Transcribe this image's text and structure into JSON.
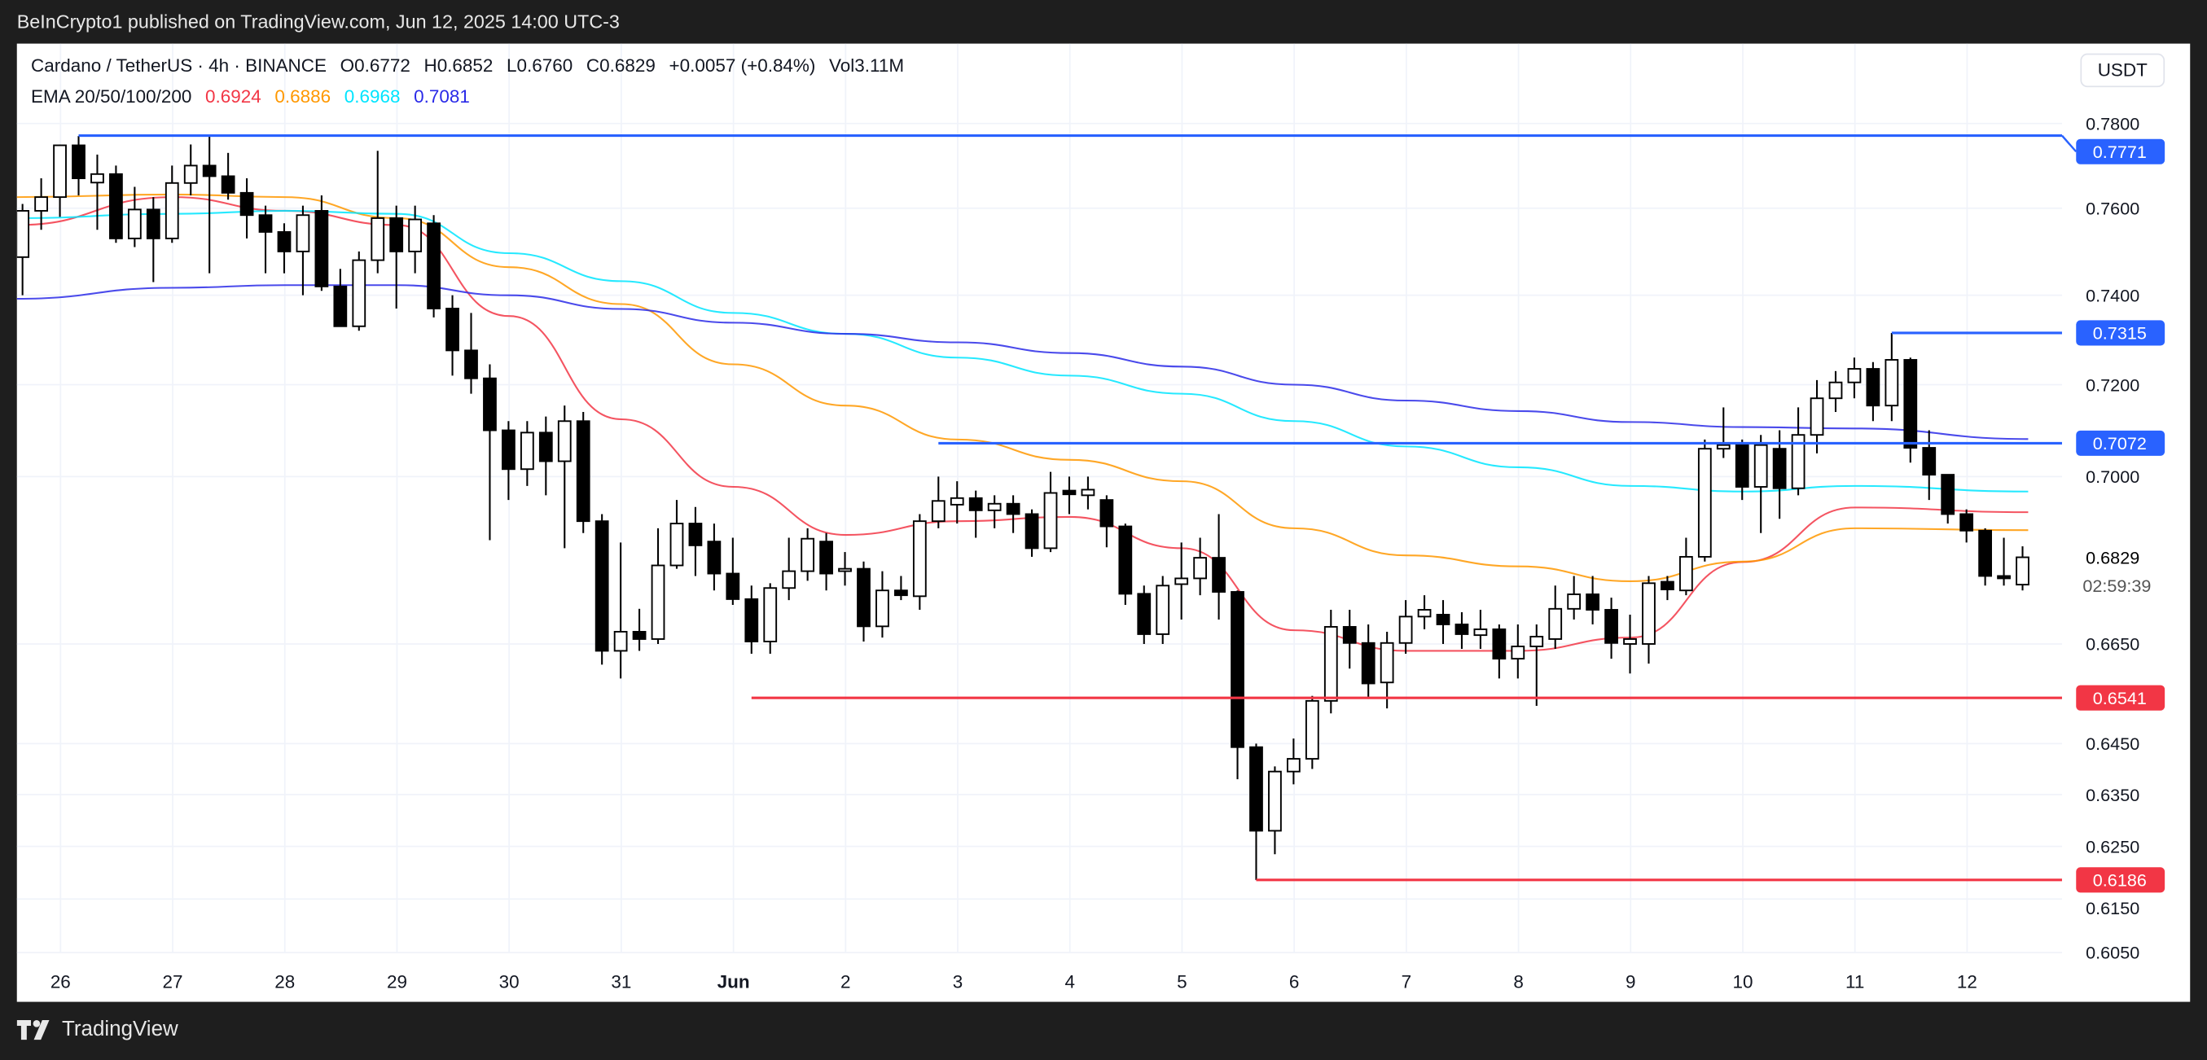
{
  "topbar": {
    "publisher": "BeInCrypto1 published on TradingView.com, Jun 12, 2025 14:00 UTC-3"
  },
  "legend": {
    "symbol": "Cardano / TetherUS · 4h · BINANCE",
    "open": "O0.6772",
    "high": "H0.6852",
    "low": "L0.6760",
    "close": "C0.6829",
    "change": "+0.0057 (+0.84%)",
    "volume": "Vol3.11M",
    "ema_label": "EMA 20/50/100/200",
    "ema20": "0.6924",
    "ema50": "0.6886",
    "ema100": "0.6968",
    "ema200": "0.7081"
  },
  "currency_button": "USDT",
  "countdown": "02:59:39",
  "branding": "TradingView",
  "colors": {
    "ema20": "#f23645",
    "ema50": "#ff9800",
    "ema100": "#00e5ff",
    "ema200": "#2a2ae8",
    "resistance": "#2962ff",
    "support": "#f23645",
    "up_candle": "#ffffff",
    "down_candle": "#000000"
  },
  "chart_data": {
    "type": "candlestick",
    "interval": "4h",
    "y_scale": "log",
    "ylim": [
      0.603,
      0.782
    ],
    "grid": true,
    "x_ticks": [
      "26",
      "27",
      "28",
      "29",
      "30",
      "31",
      "Jun",
      "2",
      "3",
      "4",
      "5",
      "6",
      "7",
      "8",
      "9",
      "10",
      "11",
      "12"
    ],
    "y_ticks": [
      "0.7800",
      "0.7600",
      "0.7400",
      "0.7200",
      "0.7000",
      "0.6650",
      "0.6450",
      "0.6350",
      "0.6250",
      "0.6150",
      "0.6050"
    ],
    "last_price": "0.6829",
    "candles_ohlc": [
      [
        0.7487,
        0.761,
        0.74,
        0.7594
      ],
      [
        0.7594,
        0.767,
        0.755,
        0.7626
      ],
      [
        0.7626,
        0.775,
        0.758,
        0.7748
      ],
      [
        0.7748,
        0.777,
        0.763,
        0.767
      ],
      [
        0.766,
        0.7726,
        0.755,
        0.768
      ],
      [
        0.768,
        0.77,
        0.752,
        0.753
      ],
      [
        0.753,
        0.765,
        0.751,
        0.7597
      ],
      [
        0.7597,
        0.7626,
        0.743,
        0.753
      ],
      [
        0.753,
        0.77,
        0.752,
        0.7659
      ],
      [
        0.7659,
        0.775,
        0.763,
        0.77
      ],
      [
        0.77,
        0.777,
        0.745,
        0.7675
      ],
      [
        0.7675,
        0.773,
        0.762,
        0.7636
      ],
      [
        0.7636,
        0.767,
        0.753,
        0.7584
      ],
      [
        0.7584,
        0.7606,
        0.745,
        0.7545
      ],
      [
        0.7545,
        0.7565,
        0.745,
        0.75
      ],
      [
        0.75,
        0.7606,
        0.74,
        0.7584
      ],
      [
        0.7594,
        0.763,
        0.741,
        0.742
      ],
      [
        0.742,
        0.746,
        0.733,
        0.733
      ],
      [
        0.733,
        0.75,
        0.732,
        0.748
      ],
      [
        0.748,
        0.7735,
        0.745,
        0.7577
      ],
      [
        0.7577,
        0.7606,
        0.737,
        0.75
      ],
      [
        0.75,
        0.7606,
        0.745,
        0.7574
      ],
      [
        0.7565,
        0.7584,
        0.735,
        0.737
      ],
      [
        0.737,
        0.74,
        0.722,
        0.7276
      ],
      [
        0.7276,
        0.736,
        0.718,
        0.7214
      ],
      [
        0.7214,
        0.7245,
        0.6865,
        0.71
      ],
      [
        0.71,
        0.712,
        0.695,
        0.7016
      ],
      [
        0.7016,
        0.712,
        0.698,
        0.7095
      ],
      [
        0.7095,
        0.713,
        0.696,
        0.7033
      ],
      [
        0.7033,
        0.7154,
        0.6848,
        0.712
      ],
      [
        0.712,
        0.714,
        0.688,
        0.6905
      ],
      [
        0.6905,
        0.692,
        0.6608,
        0.6636
      ],
      [
        0.6636,
        0.686,
        0.658,
        0.6675
      ],
      [
        0.6675,
        0.6722,
        0.6636,
        0.666
      ],
      [
        0.666,
        0.689,
        0.665,
        0.6812
      ],
      [
        0.6812,
        0.695,
        0.6805,
        0.69
      ],
      [
        0.69,
        0.6935,
        0.679,
        0.6854
      ],
      [
        0.6862,
        0.69,
        0.676,
        0.6795
      ],
      [
        0.6795,
        0.687,
        0.673,
        0.6742
      ],
      [
        0.6742,
        0.677,
        0.663,
        0.6655
      ],
      [
        0.6655,
        0.6775,
        0.663,
        0.6765
      ],
      [
        0.6765,
        0.687,
        0.674,
        0.68
      ],
      [
        0.68,
        0.689,
        0.678,
        0.6868
      ],
      [
        0.6862,
        0.688,
        0.676,
        0.6795
      ],
      [
        0.68,
        0.684,
        0.677,
        0.6805
      ],
      [
        0.6805,
        0.682,
        0.6655,
        0.6686
      ],
      [
        0.6686,
        0.68,
        0.6663,
        0.676
      ],
      [
        0.676,
        0.679,
        0.674,
        0.675
      ],
      [
        0.6748,
        0.692,
        0.672,
        0.6905
      ],
      [
        0.6905,
        0.7,
        0.689,
        0.6948
      ],
      [
        0.694,
        0.699,
        0.69,
        0.6954
      ],
      [
        0.6954,
        0.697,
        0.687,
        0.6928
      ],
      [
        0.6928,
        0.696,
        0.689,
        0.6942
      ],
      [
        0.6942,
        0.696,
        0.688,
        0.692
      ],
      [
        0.692,
        0.693,
        0.683,
        0.6848
      ],
      [
        0.6848,
        0.701,
        0.684,
        0.6965
      ],
      [
        0.697,
        0.7,
        0.692,
        0.6962
      ],
      [
        0.696,
        0.7,
        0.693,
        0.6972
      ],
      [
        0.695,
        0.696,
        0.685,
        0.6894
      ],
      [
        0.6894,
        0.69,
        0.673,
        0.6753
      ],
      [
        0.6753,
        0.677,
        0.665,
        0.667
      ],
      [
        0.667,
        0.679,
        0.665,
        0.677
      ],
      [
        0.6773,
        0.686,
        0.67,
        0.6785
      ],
      [
        0.6785,
        0.687,
        0.675,
        0.6828
      ],
      [
        0.6828,
        0.692,
        0.67,
        0.6757
      ],
      [
        0.6757,
        0.676,
        0.638,
        0.6443
      ],
      [
        0.6443,
        0.645,
        0.6186,
        0.628
      ],
      [
        0.628,
        0.6405,
        0.6235,
        0.6395
      ],
      [
        0.6395,
        0.646,
        0.637,
        0.642
      ],
      [
        0.642,
        0.6545,
        0.64,
        0.6535
      ],
      [
        0.6535,
        0.672,
        0.651,
        0.6685
      ],
      [
        0.6685,
        0.672,
        0.66,
        0.6652
      ],
      [
        0.6652,
        0.669,
        0.654,
        0.657
      ],
      [
        0.6572,
        0.6675,
        0.652,
        0.6652
      ],
      [
        0.6652,
        0.674,
        0.663,
        0.6706
      ],
      [
        0.6706,
        0.675,
        0.668,
        0.672
      ],
      [
        0.671,
        0.674,
        0.665,
        0.669
      ],
      [
        0.669,
        0.6715,
        0.664,
        0.667
      ],
      [
        0.6668,
        0.672,
        0.664,
        0.668
      ],
      [
        0.668,
        0.669,
        0.658,
        0.662
      ],
      [
        0.662,
        0.669,
        0.658,
        0.6645
      ],
      [
        0.6645,
        0.669,
        0.6525,
        0.6665
      ],
      [
        0.666,
        0.677,
        0.664,
        0.6722
      ],
      [
        0.6722,
        0.679,
        0.67,
        0.6752
      ],
      [
        0.6752,
        0.679,
        0.669,
        0.672
      ],
      [
        0.672,
        0.6745,
        0.662,
        0.6652
      ],
      [
        0.665,
        0.671,
        0.659,
        0.666
      ],
      [
        0.665,
        0.679,
        0.661,
        0.6775
      ],
      [
        0.6778,
        0.679,
        0.674,
        0.6762
      ],
      [
        0.676,
        0.687,
        0.675,
        0.683
      ],
      [
        0.683,
        0.708,
        0.682,
        0.706
      ],
      [
        0.706,
        0.715,
        0.704,
        0.7068
      ],
      [
        0.7068,
        0.708,
        0.695,
        0.6978
      ],
      [
        0.6978,
        0.709,
        0.688,
        0.7068
      ],
      [
        0.706,
        0.71,
        0.691,
        0.6975
      ],
      [
        0.6975,
        0.715,
        0.696,
        0.709
      ],
      [
        0.709,
        0.721,
        0.705,
        0.717
      ],
      [
        0.717,
        0.723,
        0.714,
        0.7205
      ],
      [
        0.7205,
        0.726,
        0.717,
        0.7235
      ],
      [
        0.7235,
        0.725,
        0.712,
        0.7154
      ],
      [
        0.7154,
        0.7315,
        0.712,
        0.7255
      ],
      [
        0.7255,
        0.726,
        0.703,
        0.7062
      ],
      [
        0.7062,
        0.71,
        0.695,
        0.7004
      ],
      [
        0.7004,
        0.7004,
        0.69,
        0.692
      ],
      [
        0.692,
        0.693,
        0.686,
        0.6885
      ],
      [
        0.6885,
        0.689,
        0.677,
        0.679
      ],
      [
        0.679,
        0.687,
        0.677,
        0.6785
      ],
      [
        0.6772,
        0.6852,
        0.676,
        0.6829
      ]
    ],
    "ema_series": [
      {
        "name": "EMA 20",
        "color": "#f23645",
        "daily": [
          0.7561,
          0.7626,
          0.7594,
          0.7561,
          0.7353,
          0.7124,
          0.6978,
          0.6876,
          0.6905,
          0.6914,
          0.6848,
          0.6678,
          0.6636,
          0.6636,
          0.6663,
          0.6819,
          0.6934,
          0.6924
        ]
      },
      {
        "name": "EMA 50",
        "color": "#ff9800",
        "daily": [
          0.7626,
          0.7632,
          0.7626,
          0.7577,
          0.7464,
          0.738,
          0.7245,
          0.7154,
          0.708,
          0.7036,
          0.699,
          0.689,
          0.6833,
          0.681,
          0.6779,
          0.682,
          0.689,
          0.6886
        ]
      },
      {
        "name": "EMA 100",
        "color": "#00e5ff",
        "daily": [
          0.7577,
          0.7587,
          0.7594,
          0.7587,
          0.7496,
          0.7432,
          0.736,
          0.7313,
          0.726,
          0.722,
          0.718,
          0.712,
          0.7065,
          0.702,
          0.698,
          0.6968,
          0.698,
          0.6968
        ]
      },
      {
        "name": "EMA 200",
        "color": "#2a2ae8",
        "daily": [
          0.7392,
          0.7417,
          0.7423,
          0.7423,
          0.74,
          0.7369,
          0.7338,
          0.7313,
          0.7294,
          0.727,
          0.724,
          0.72,
          0.7165,
          0.7142,
          0.7118,
          0.7107,
          0.7104,
          0.7081
        ]
      }
    ],
    "levels": [
      {
        "price": 0.7771,
        "label": "0.7771",
        "type": "resistance",
        "from_candle": 3
      },
      {
        "price": 0.7315,
        "label": "0.7315",
        "type": "resistance",
        "from_candle": 100
      },
      {
        "price": 0.7072,
        "label": "0.7072",
        "type": "resistance",
        "from_candle": 49
      },
      {
        "price": 0.6541,
        "label": "0.6541",
        "type": "support",
        "from_candle": 39
      },
      {
        "price": 0.6186,
        "label": "0.6186",
        "type": "support",
        "from_candle": 66
      }
    ]
  }
}
